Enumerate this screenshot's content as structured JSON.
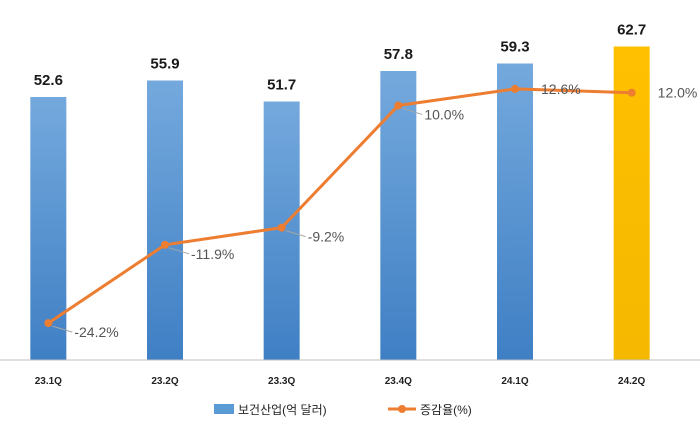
{
  "chart_data": {
    "type": "bar",
    "categories": [
      "23.1Q",
      "23.2Q",
      "23.3Q",
      "23.4Q",
      "24.1Q",
      "24.2Q"
    ],
    "series": [
      {
        "name": "보건산업(억 달러)",
        "type": "bar",
        "values": [
          52.6,
          55.9,
          51.7,
          57.8,
          59.3,
          62.7
        ],
        "labels": [
          "52.6",
          "55.9",
          "51.7",
          "57.8",
          "59.3",
          "62.7"
        ],
        "color": "#5b9bd5",
        "highlight_index": 5,
        "highlight_color": "#ffc000"
      },
      {
        "name": "증감율(%)",
        "type": "line",
        "axis": "secondary",
        "values": [
          -24.2,
          -11.9,
          -9.2,
          10.0,
          12.6,
          12.0
        ],
        "labels": [
          "-24.2%",
          "-11.9%",
          "-9.2%",
          "10.0%",
          "12.6%",
          "12.0%"
        ],
        "color": "#ed7d31"
      }
    ],
    "ylim": [
      0,
      70
    ],
    "y2lim": [
      -30,
      25
    ],
    "grid": false,
    "legend": {
      "position": "bottom",
      "entries": [
        "보건산업(억 달러)",
        "증감율(%)"
      ]
    }
  }
}
